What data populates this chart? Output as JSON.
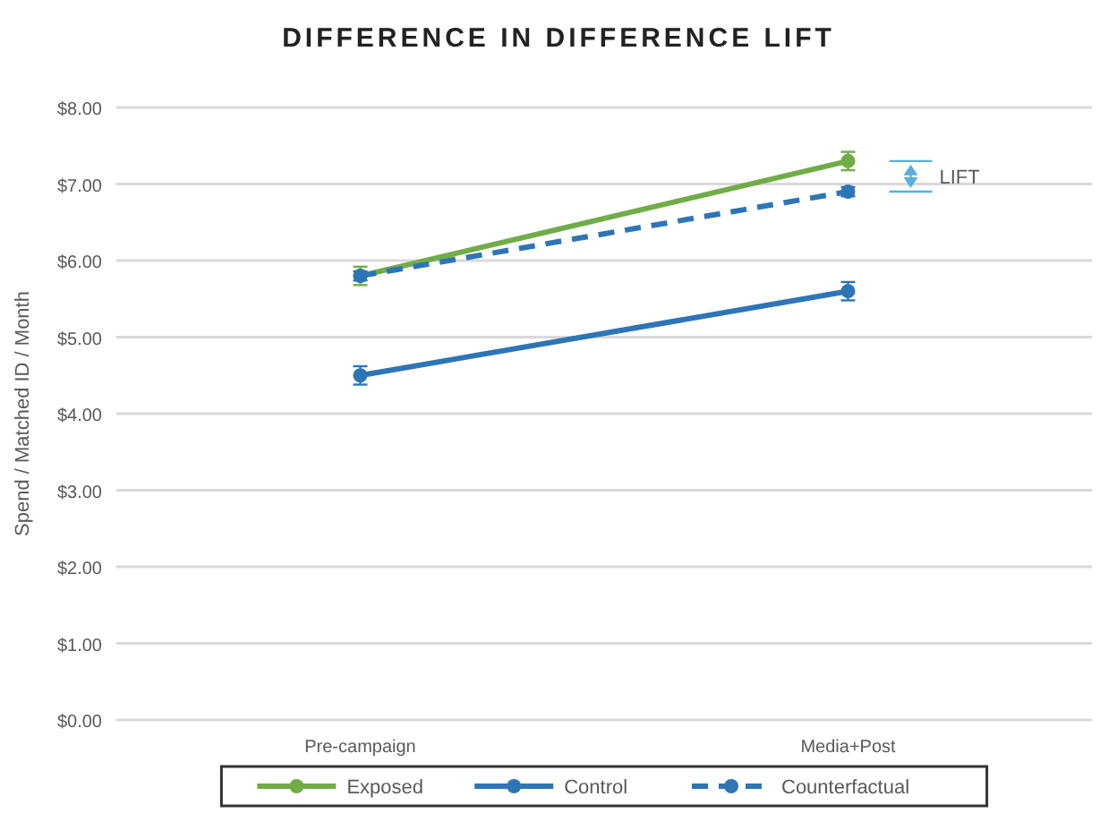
{
  "chart_data": {
    "type": "line",
    "title": "DIFFERENCE IN DIFFERENCE LIFT",
    "ylabel": "Spend / Matched ID / Month",
    "categories": [
      "Pre-campaign",
      "Media+Post"
    ],
    "series": [
      {
        "name": "Exposed",
        "color": "#70ad47",
        "values": [
          5.8,
          7.3
        ],
        "errors": [
          0.12,
          0.12
        ]
      },
      {
        "name": "Control",
        "color": "#2e75b6",
        "values": [
          4.5,
          5.6
        ],
        "errors": [
          0.12,
          0.12
        ]
      },
      {
        "name": "Counterfactual",
        "color": "#2e75b6",
        "values": [
          5.8,
          6.9
        ],
        "errors": [
          0.06,
          0.06
        ],
        "line_style": "dashed"
      }
    ],
    "annotations": [
      "LIFT"
    ],
    "ylim": [
      0,
      8
    ],
    "yticks": [
      {
        "value": 0,
        "label": "$0.00"
      },
      {
        "value": 1,
        "label": "$1.00"
      },
      {
        "value": 2,
        "label": "$2.00"
      },
      {
        "value": 3,
        "label": "$3.00"
      },
      {
        "value": 4,
        "label": "$4.00"
      },
      {
        "value": 5,
        "label": "$5.00"
      },
      {
        "value": 6,
        "label": "$6.00"
      },
      {
        "value": 7,
        "label": "$7.00"
      },
      {
        "value": 8,
        "label": "$8.00"
      }
    ],
    "grid": "y",
    "legend": "bottom",
    "marker": "circle",
    "line_style": "solid"
  }
}
